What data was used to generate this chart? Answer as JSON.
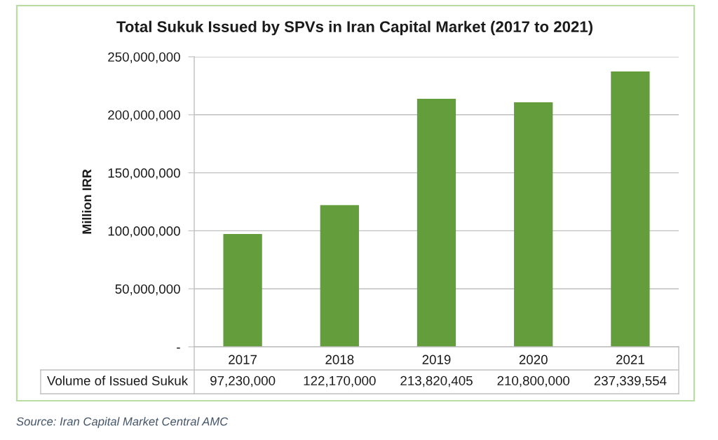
{
  "chart_data": {
    "type": "bar",
    "title": "Total Sukuk Issued by SPVs in Iran Capital Market (2017 to 2021)",
    "ylabel": "Million IRR",
    "categories": [
      "2017",
      "2018",
      "2019",
      "2020",
      "2021"
    ],
    "series": [
      {
        "name": "Volume of Issued Sukuk",
        "color": "#639d3c",
        "values": [
          97230000,
          122170000,
          213820405,
          210800000,
          237339554
        ],
        "value_labels": [
          "97,230,000",
          "122,170,000",
          "213,820,405",
          "210,800,000",
          "237,339,554"
        ]
      }
    ],
    "ylim": [
      0,
      250000000
    ],
    "yticks": [
      {
        "value": 0,
        "label": "-"
      },
      {
        "value": 50000000,
        "label": "50,000,000"
      },
      {
        "value": 100000000,
        "label": "100,000,000"
      },
      {
        "value": 150000000,
        "label": "150,000,000"
      },
      {
        "value": 200000000,
        "label": "200,000,000"
      },
      {
        "value": 250000000,
        "label": "250,000,000"
      }
    ],
    "grid": "y",
    "annotations": [
      "Source: Iran Capital Market Central AMC"
    ]
  }
}
